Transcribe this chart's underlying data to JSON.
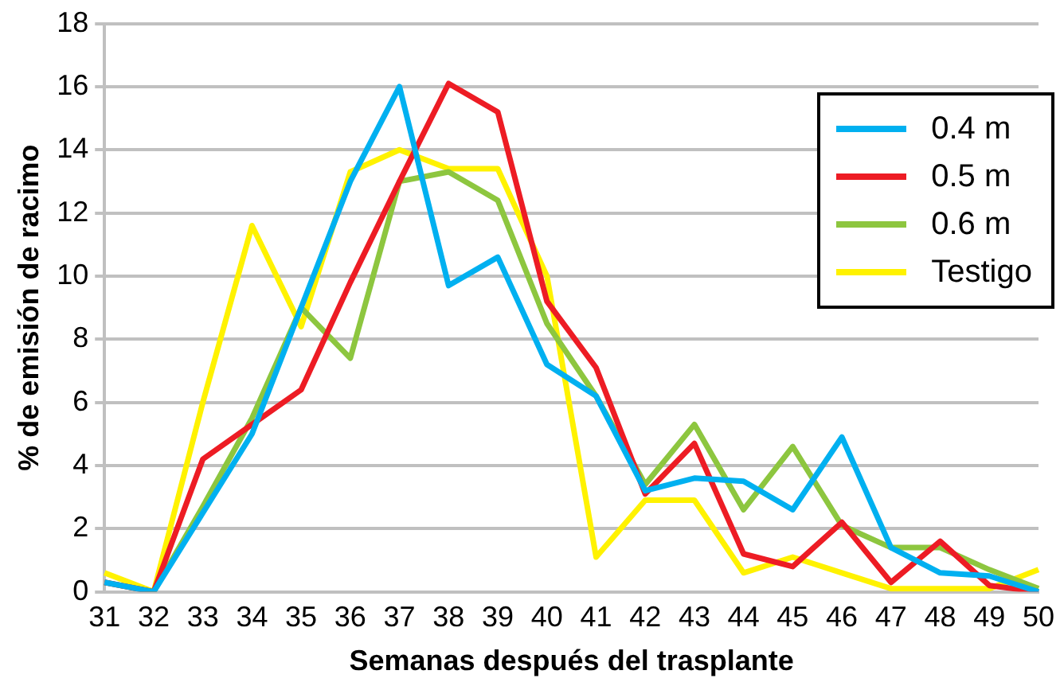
{
  "chart_data": {
    "type": "line",
    "xlabel": "Semanas después del trasplante",
    "ylabel": "% de emisión de racimo",
    "categories": [
      "31",
      "32",
      "33",
      "34",
      "35",
      "36",
      "37",
      "38",
      "39",
      "40",
      "41",
      "42",
      "43",
      "44",
      "45",
      "46",
      "47",
      "48",
      "49",
      "50"
    ],
    "series": [
      {
        "name": "0.4 m",
        "color": "#00b0f0",
        "values": [
          0.3,
          0,
          2.5,
          5,
          9,
          13,
          16,
          9.7,
          10.6,
          7.2,
          6.2,
          3.2,
          3.6,
          3.5,
          2.6,
          4.9,
          1.4,
          0.6,
          0.5,
          0
        ]
      },
      {
        "name": "0.5 m",
        "color": "#ed1c24",
        "values": [
          0.3,
          0,
          4.2,
          5.3,
          6.4,
          9.8,
          13,
          16.1,
          15.2,
          9.2,
          7.1,
          3.1,
          4.7,
          1.2,
          0.8,
          2.2,
          0.3,
          1.6,
          0.2,
          0
        ]
      },
      {
        "name": "0.6 m",
        "color": "#8dc63f",
        "values": [
          0.3,
          0,
          2.7,
          5.5,
          9,
          7.4,
          13,
          13.3,
          12.4,
          8.5,
          6.2,
          3.4,
          5.3,
          2.6,
          4.6,
          2.1,
          1.4,
          1.4,
          0.7,
          0.1
        ]
      },
      {
        "name": "Testigo",
        "color": "#fff200",
        "values": [
          0.6,
          0,
          6,
          11.6,
          8.4,
          13.3,
          14,
          13.4,
          13.4,
          10,
          1.1,
          2.9,
          2.9,
          0.6,
          1.1,
          0.6,
          0.1,
          0.1,
          0.1,
          0.7
        ]
      }
    ],
    "ylim": [
      0,
      18
    ],
    "yticks": [
      0,
      2,
      4,
      6,
      8,
      10,
      12,
      14,
      16,
      18
    ],
    "grid": "y",
    "legend": "top right",
    "marker": "none",
    "line_style": "solid"
  }
}
